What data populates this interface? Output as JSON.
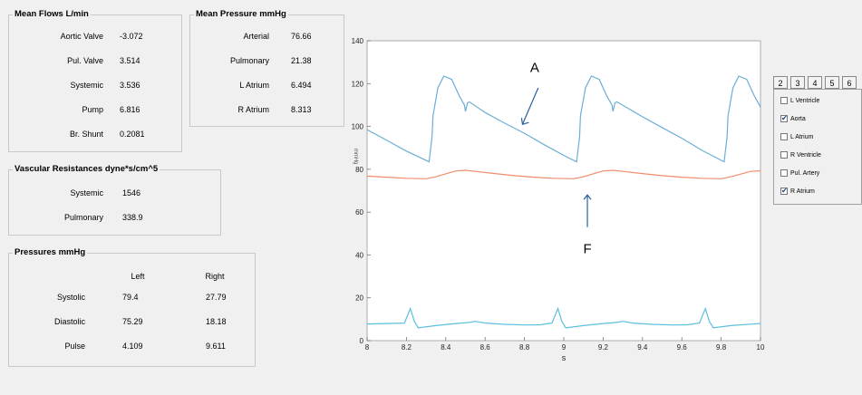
{
  "mean_flows": {
    "title": "Mean Flows   L/min",
    "rows": [
      {
        "label": "Aortic Valve",
        "value": "-3.072"
      },
      {
        "label": "Pul. Valve",
        "value": "3.514"
      },
      {
        "label": "Systemic",
        "value": "3.536"
      },
      {
        "label": "Pump",
        "value": "6.816"
      },
      {
        "label": "Br. Shunt",
        "value": "0.2081"
      }
    ]
  },
  "mean_pressure": {
    "title": "Mean Pressure   mmHg",
    "rows": [
      {
        "label": "Arterial",
        "value": "76.66"
      },
      {
        "label": "Pulmonary",
        "value": "21.38"
      },
      {
        "label": "L Atrium",
        "value": "6.494"
      },
      {
        "label": "R Atrium",
        "value": "8.313"
      }
    ]
  },
  "vascular_resistances": {
    "title": "Vascular Resistances   dyne*s/cm^5",
    "rows": [
      {
        "label": "Systemic",
        "value": "1546"
      },
      {
        "label": "Pulmonary",
        "value": "338.9"
      }
    ]
  },
  "pressures": {
    "title": "Pressures   mmHg",
    "headers": [
      "Left",
      "Right"
    ],
    "rows": [
      {
        "label": "Systolic",
        "left": "79.4",
        "right": "27.79"
      },
      {
        "label": "Diastolic",
        "left": "75.29",
        "right": "18.18"
      },
      {
        "label": "Pulse",
        "left": "4.109",
        "right": "9.611"
      }
    ]
  },
  "tabs": [
    "2",
    "3",
    "4",
    "5",
    "6"
  ],
  "checkboxes": [
    {
      "label": "L Ventricle",
      "checked": false
    },
    {
      "label": "Aorta",
      "checked": true
    },
    {
      "label": "L Atrium",
      "checked": false
    },
    {
      "label": "R Ventricle",
      "checked": false
    },
    {
      "label": "Pul. Artery",
      "checked": false
    },
    {
      "label": "R Atrium",
      "checked": true
    }
  ],
  "chart_data": {
    "type": "line",
    "xlabel": "s",
    "ylabel": "mmHg",
    "xlim": [
      8,
      10
    ],
    "ylim": [
      0,
      140
    ],
    "x_ticks": [
      8,
      8.2,
      8.4,
      8.6,
      8.8,
      9,
      9.2,
      9.4,
      9.6,
      9.8,
      10
    ],
    "x_tick_labels": [
      "8",
      "8.2",
      "8.4",
      "8.6",
      "8.8",
      "9",
      "9.2",
      "9.4",
      "9.6",
      "9.8",
      "10"
    ],
    "y_ticks": [
      0,
      20,
      40,
      60,
      80,
      100,
      120,
      140
    ],
    "y_tick_labels": [
      "0",
      "20",
      "40",
      "60",
      "80",
      "100",
      "120",
      "140"
    ],
    "colors": {
      "aorta": "#6baed6",
      "r_atrium_line": "#5bc0de",
      "pulmonary": "#f08c6c"
    },
    "series": [
      {
        "color": "#6baed6",
        "points": [
          [
            8,
            98.5
          ],
          [
            8.1,
            93.5
          ],
          [
            8.2,
            88.5
          ],
          [
            8.315,
            83.5
          ],
          [
            8.33,
            95
          ],
          [
            8.335,
            105
          ],
          [
            8.36,
            118
          ],
          [
            8.39,
            123.5
          ],
          [
            8.43,
            122
          ],
          [
            8.47,
            114
          ],
          [
            8.495,
            110
          ],
          [
            8.5,
            107
          ],
          [
            8.51,
            111
          ],
          [
            8.52,
            111.5
          ],
          [
            8.6,
            106.5
          ],
          [
            8.7,
            101.5
          ],
          [
            8.8,
            96.8
          ],
          [
            8.9,
            91.5
          ],
          [
            9,
            86.5
          ],
          [
            9.065,
            83.5
          ],
          [
            9.08,
            95
          ],
          [
            9.085,
            105
          ],
          [
            9.11,
            118
          ],
          [
            9.14,
            123.5
          ],
          [
            9.18,
            122
          ],
          [
            9.22,
            114
          ],
          [
            9.245,
            110
          ],
          [
            9.25,
            107
          ],
          [
            9.26,
            111
          ],
          [
            9.27,
            111.5
          ],
          [
            9.4,
            104.5
          ],
          [
            9.5,
            99.5
          ],
          [
            9.6,
            94.5
          ],
          [
            9.7,
            89
          ],
          [
            9.815,
            83.5
          ],
          [
            9.83,
            95
          ],
          [
            9.835,
            105
          ],
          [
            9.86,
            118
          ],
          [
            9.89,
            123.5
          ],
          [
            9.93,
            122
          ],
          [
            9.97,
            114
          ],
          [
            9.995,
            110
          ],
          [
            10,
            109
          ]
        ]
      },
      {
        "color": "#f08c6c",
        "points": [
          [
            8,
            76.8
          ],
          [
            8.1,
            76.3
          ],
          [
            8.2,
            75.8
          ],
          [
            8.3,
            75.6
          ],
          [
            8.35,
            76.5
          ],
          [
            8.45,
            79.2
          ],
          [
            8.5,
            79.5
          ],
          [
            8.55,
            79
          ],
          [
            8.65,
            78
          ],
          [
            8.75,
            77
          ],
          [
            8.85,
            76.3
          ],
          [
            8.95,
            75.8
          ],
          [
            9.05,
            75.6
          ],
          [
            9.1,
            76.5
          ],
          [
            9.2,
            79.2
          ],
          [
            9.25,
            79.5
          ],
          [
            9.3,
            79
          ],
          [
            9.4,
            78
          ],
          [
            9.5,
            77
          ],
          [
            9.6,
            76.3
          ],
          [
            9.7,
            75.8
          ],
          [
            9.8,
            75.6
          ],
          [
            9.85,
            76.5
          ],
          [
            9.95,
            79
          ],
          [
            10,
            79.3
          ]
        ]
      },
      {
        "color": "#5bc0de",
        "points": [
          [
            8,
            7.8
          ],
          [
            8.1,
            8
          ],
          [
            8.19,
            8.2
          ],
          [
            8.22,
            15
          ],
          [
            8.24,
            9
          ],
          [
            8.26,
            6
          ],
          [
            8.35,
            7
          ],
          [
            8.45,
            8
          ],
          [
            8.52,
            8.5
          ],
          [
            8.55,
            9
          ],
          [
            8.6,
            8.2
          ],
          [
            8.7,
            7.6
          ],
          [
            8.8,
            7.3
          ],
          [
            8.88,
            7.4
          ],
          [
            8.94,
            8.2
          ],
          [
            8.97,
            15
          ],
          [
            8.99,
            9
          ],
          [
            9.01,
            6
          ],
          [
            9.1,
            7
          ],
          [
            9.2,
            8
          ],
          [
            9.27,
            8.5
          ],
          [
            9.3,
            9
          ],
          [
            9.35,
            8.2
          ],
          [
            9.45,
            7.6
          ],
          [
            9.55,
            7.3
          ],
          [
            9.63,
            7.4
          ],
          [
            9.69,
            8.2
          ],
          [
            9.72,
            15
          ],
          [
            9.74,
            9
          ],
          [
            9.76,
            6
          ],
          [
            9.85,
            7
          ],
          [
            9.95,
            7.7
          ],
          [
            10,
            8
          ]
        ]
      }
    ],
    "annotations": [
      {
        "text": "A",
        "x": 8.76,
        "y": 127.5
      },
      {
        "text": "F",
        "x": 9.12,
        "y": 43
      }
    ]
  }
}
